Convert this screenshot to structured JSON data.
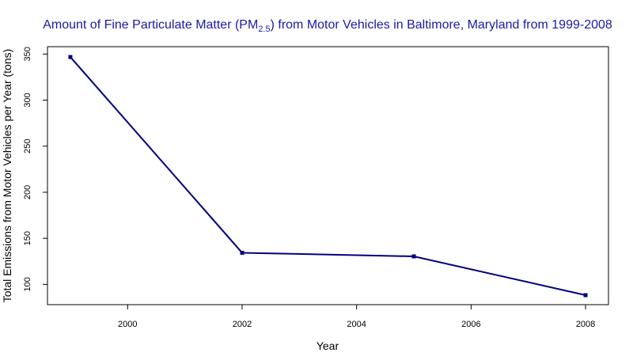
{
  "chart_data": {
    "type": "line",
    "title_main": "Amount of Fine Particulate Matter (PM",
    "title_sub": "2.5",
    "title_rest": ") from Motor Vehicles in Baltimore, Maryland from 1999-2008",
    "xlabel": "Year",
    "ylabel": "Total Emissions from Motor Vehicles per Year (tons)",
    "x": [
      1999,
      2002,
      2005,
      2008
    ],
    "y": [
      346.8,
      134.3,
      130.4,
      88.3
    ],
    "x_ticks": [
      2000,
      2002,
      2004,
      2006,
      2008
    ],
    "y_ticks": [
      100,
      150,
      200,
      250,
      300,
      350
    ],
    "xlim": [
      1998.6,
      2008.4
    ],
    "ylim": [
      78,
      358
    ],
    "grid": false,
    "line_color": "#000080",
    "title_color": "#1a1aa6"
  }
}
